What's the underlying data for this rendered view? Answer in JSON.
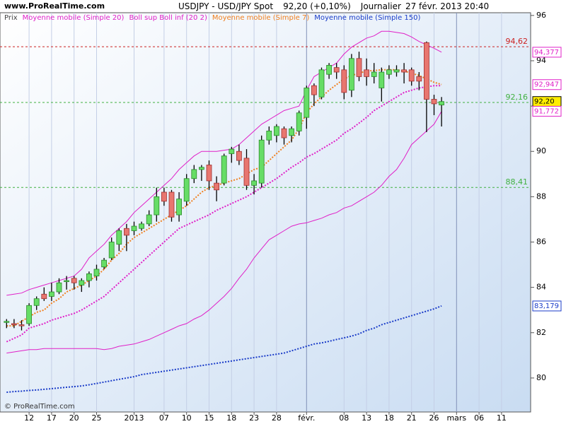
{
  "chart_data": {
    "type": "candlestick",
    "source": "www.ProRealTime.com",
    "title": "USDJPY - USD/JPY Spot",
    "price_label": "92,20 (+0,10%)",
    "period": "Journalier",
    "timestamp": "27 févr. 2013 20:40",
    "copyright": "© ProRealTime.com",
    "categories": [
      null,
      null,
      null,
      "12",
      null,
      null,
      "17",
      null,
      null,
      "20",
      null,
      null,
      "25",
      null,
      null,
      null,
      null,
      "2013",
      null,
      null,
      null,
      "07",
      null,
      null,
      "10",
      null,
      null,
      "15",
      null,
      null,
      "18",
      null,
      null,
      "23",
      null,
      null,
      "28",
      null,
      null,
      null,
      "févr.",
      null,
      null,
      null,
      null,
      "08",
      null,
      null,
      "13",
      null,
      null,
      "18",
      null,
      null,
      "21",
      null,
      null,
      "26",
      null,
      null,
      "mars",
      null,
      null,
      "06",
      null,
      null,
      "11",
      null,
      null,
      null
    ],
    "price": {
      "name": "Prix",
      "up_color": "#66dd66",
      "down_color": "#e8766f",
      "open": [
        82.45,
        82.4,
        82.35,
        82.4,
        83.2,
        83.7,
        83.6,
        83.8,
        84.25,
        84.4,
        84.1,
        84.3,
        84.5,
        84.9,
        85.3,
        85.9,
        86.6,
        86.5,
        86.6,
        86.8,
        87.2,
        88.2,
        88.2,
        87.2,
        87.8,
        88.8,
        89.2,
        89.4,
        88.6,
        88.6,
        89.9,
        90.0,
        89.7,
        88.5,
        88.6,
        90.5,
        90.7,
        91.0,
        90.7,
        90.9,
        91.5,
        92.9,
        92.4,
        93.4,
        93.7,
        93.6,
        92.7,
        94.1,
        93.6,
        93.3,
        92.8,
        93.4,
        93.5,
        93.6,
        93.6,
        93.3,
        94.8,
        92.3,
        92.05,
        null,
        null,
        null,
        null,
        null,
        null,
        null,
        null,
        null,
        null,
        null
      ],
      "high": [
        82.6,
        82.6,
        82.55,
        83.3,
        83.6,
        84.0,
        84.2,
        84.4,
        84.5,
        84.5,
        84.4,
        84.7,
        85.0,
        85.3,
        86.2,
        86.6,
        86.8,
        86.9,
        86.9,
        87.4,
        88.4,
        88.4,
        88.3,
        88.2,
        89.0,
        89.4,
        89.4,
        89.6,
        88.9,
        89.9,
        90.2,
        90.3,
        90.1,
        89.0,
        90.7,
        91.1,
        91.2,
        91.1,
        91.1,
        91.8,
        92.9,
        93.0,
        93.7,
        93.9,
        93.9,
        93.8,
        94.3,
        94.4,
        94.1,
        93.9,
        93.7,
        93.8,
        93.8,
        93.9,
        93.7,
        93.5,
        94.85,
        92.5,
        92.4,
        null,
        null,
        null,
        null,
        null,
        null,
        null,
        null,
        null,
        null,
        null
      ],
      "low": [
        82.2,
        82.2,
        82.1,
        82.3,
        83.0,
        83.4,
        83.4,
        83.7,
        83.9,
        83.9,
        83.8,
        84.0,
        84.3,
        84.8,
        85.2,
        85.6,
        85.6,
        86.3,
        86.5,
        86.7,
        86.9,
        87.6,
        86.9,
        86.9,
        87.6,
        88.6,
        88.7,
        88.3,
        87.8,
        88.5,
        89.5,
        89.4,
        88.3,
        88.1,
        88.4,
        90.3,
        90.4,
        90.3,
        90.4,
        90.7,
        91.0,
        92.0,
        92.3,
        93.2,
        93.2,
        92.3,
        92.4,
        93.1,
        92.9,
        93.0,
        92.2,
        93.2,
        93.3,
        93.0,
        92.9,
        92.7,
        90.85,
        91.6,
        91.1,
        null,
        null,
        null,
        null,
        null,
        null,
        null,
        null,
        null,
        null,
        null
      ],
      "close": [
        82.5,
        82.35,
        82.3,
        83.2,
        83.5,
        83.5,
        83.8,
        84.2,
        84.3,
        84.2,
        84.3,
        84.6,
        84.8,
        85.2,
        86.0,
        86.5,
        86.3,
        86.7,
        86.8,
        87.2,
        88.0,
        87.8,
        87.1,
        87.9,
        88.8,
        89.2,
        89.3,
        88.7,
        88.3,
        89.8,
        90.1,
        89.6,
        88.5,
        88.7,
        90.5,
        90.9,
        91.1,
        90.6,
        91.0,
        91.7,
        92.8,
        92.5,
        93.6,
        93.8,
        93.5,
        92.6,
        94.1,
        93.3,
        93.3,
        93.5,
        93.5,
        93.6,
        93.6,
        93.5,
        93.1,
        93.1,
        92.3,
        92.1,
        92.2,
        null,
        null,
        null,
        null,
        null,
        null,
        null,
        null,
        null,
        null,
        null
      ]
    },
    "series": [
      {
        "name": "Moyenne mobile (Simple 20)",
        "color": "#e020c8",
        "style": "dotted",
        "values": [
          81.6,
          81.75,
          81.9,
          82.2,
          82.3,
          82.4,
          82.55,
          82.65,
          82.75,
          82.85,
          83.0,
          83.2,
          83.4,
          83.6,
          83.9,
          84.2,
          84.5,
          84.8,
          85.1,
          85.4,
          85.7,
          86.0,
          86.3,
          86.6,
          86.75,
          86.9,
          87.05,
          87.2,
          87.4,
          87.55,
          87.7,
          87.85,
          88.0,
          88.2,
          88.4,
          88.6,
          88.8,
          89.05,
          89.3,
          89.5,
          89.75,
          89.9,
          90.1,
          90.3,
          90.5,
          90.8,
          91.0,
          91.25,
          91.5,
          91.8,
          92.0,
          92.2,
          92.4,
          92.6,
          92.7,
          92.8,
          92.85,
          92.9,
          92.9,
          null,
          null,
          null,
          null,
          null,
          null,
          null,
          null,
          null,
          null,
          null
        ]
      },
      {
        "name": "Boll sup Boll inf (20 2)",
        "color": "#e020c8",
        "style": "solid",
        "values": [
          83.65,
          83.7,
          83.75,
          83.9,
          84.0,
          84.1,
          84.2,
          84.3,
          84.4,
          84.5,
          84.8,
          85.3,
          85.6,
          85.9,
          86.3,
          86.6,
          86.9,
          87.3,
          87.6,
          87.9,
          88.2,
          88.5,
          88.8,
          89.2,
          89.5,
          89.8,
          90.0,
          90.0,
          90.0,
          90.05,
          90.1,
          90.3,
          90.6,
          90.9,
          91.2,
          91.4,
          91.6,
          91.8,
          91.9,
          92.0,
          92.7,
          93.3,
          93.5,
          93.7,
          93.9,
          94.3,
          94.6,
          94.8,
          95.0,
          95.1,
          95.3,
          95.3,
          95.25,
          95.2,
          95.05,
          94.85,
          94.7,
          94.55,
          94.38,
          null,
          null,
          null,
          null,
          null,
          null,
          null,
          null,
          null,
          null,
          null
        ],
        "lower": [
          81.1,
          81.15,
          81.2,
          81.25,
          81.25,
          81.3,
          81.3,
          81.3,
          81.3,
          81.3,
          81.3,
          81.3,
          81.3,
          81.25,
          81.3,
          81.4,
          81.45,
          81.5,
          81.6,
          81.7,
          81.85,
          82.0,
          82.15,
          82.3,
          82.4,
          82.6,
          82.75,
          83.0,
          83.3,
          83.6,
          83.95,
          84.4,
          84.8,
          85.3,
          85.7,
          86.1,
          86.3,
          86.5,
          86.7,
          86.8,
          86.85,
          86.95,
          87.05,
          87.2,
          87.3,
          87.5,
          87.6,
          87.8,
          88.0,
          88.2,
          88.5,
          88.9,
          89.2,
          89.7,
          90.3,
          90.6,
          90.9,
          91.2,
          91.77,
          null,
          null,
          null,
          null,
          null,
          null,
          null,
          null,
          null,
          null,
          null
        ]
      },
      {
        "name": "Moyenne mobile (Simple 7)",
        "color": "#f08020",
        "style": "dotted",
        "values": [
          82.3,
          82.3,
          82.5,
          82.7,
          82.9,
          83.0,
          83.3,
          83.5,
          83.8,
          83.95,
          84.1,
          84.3,
          84.5,
          84.8,
          85.2,
          85.5,
          85.9,
          86.2,
          86.4,
          86.6,
          86.8,
          87.0,
          87.2,
          87.4,
          87.6,
          87.9,
          88.2,
          88.4,
          88.5,
          88.6,
          88.7,
          88.8,
          89.0,
          89.2,
          89.3,
          89.6,
          89.9,
          90.2,
          90.5,
          91.0,
          91.7,
          92.1,
          92.4,
          92.7,
          92.95,
          93.2,
          93.35,
          93.45,
          93.55,
          93.57,
          93.6,
          93.6,
          93.6,
          93.55,
          93.45,
          93.35,
          93.2,
          93.05,
          92.95,
          null,
          null,
          null,
          null,
          null,
          null,
          null,
          null,
          null,
          null,
          null
        ]
      },
      {
        "name": "Moyenne mobile (Simple 150)",
        "color": "#1a3cc8",
        "style": "dotted",
        "values": [
          79.37,
          79.4,
          79.42,
          79.45,
          79.47,
          79.5,
          79.53,
          79.56,
          79.59,
          79.62,
          79.65,
          79.7,
          79.76,
          79.82,
          79.88,
          79.94,
          80.0,
          80.06,
          80.15,
          80.2,
          80.25,
          80.3,
          80.35,
          80.4,
          80.45,
          80.5,
          80.55,
          80.6,
          80.65,
          80.7,
          80.75,
          80.8,
          80.85,
          80.9,
          80.95,
          81.0,
          81.05,
          81.1,
          81.2,
          81.3,
          81.4,
          81.5,
          81.55,
          81.62,
          81.7,
          81.77,
          81.85,
          81.95,
          82.1,
          82.2,
          82.35,
          82.45,
          82.55,
          82.65,
          82.75,
          82.85,
          82.95,
          83.05,
          83.18,
          null,
          null,
          null,
          null,
          null,
          null,
          null,
          null,
          null,
          null,
          null
        ]
      }
    ],
    "levels": [
      {
        "value": 94.62,
        "label": "94,62",
        "color": "#cc2020"
      },
      {
        "value": 92.16,
        "label": "92,16",
        "color": "#40b040"
      },
      {
        "value": 88.41,
        "label": "88,41",
        "color": "#40b040"
      }
    ],
    "last_values": [
      {
        "value": 94.377,
        "label": "94,377",
        "color": "#e020c8",
        "fill": "#ffffff"
      },
      {
        "value": 92.947,
        "label": "92,947",
        "color": "#e020c8",
        "fill": "#ffffff"
      },
      {
        "value": 92.2,
        "label": "92,20",
        "color": "#000000",
        "fill": "#ffee00"
      },
      {
        "value": 91.772,
        "label": "91,772",
        "color": "#e020c8",
        "fill": "#ffffff"
      },
      {
        "value": 83.179,
        "label": "83,179",
        "color": "#1a3cc8",
        "fill": "#ffffff"
      }
    ],
    "ylim": [
      78.5,
      96.12
    ],
    "yticks": [
      80,
      82,
      84,
      86,
      88,
      90,
      92,
      94,
      96
    ]
  }
}
